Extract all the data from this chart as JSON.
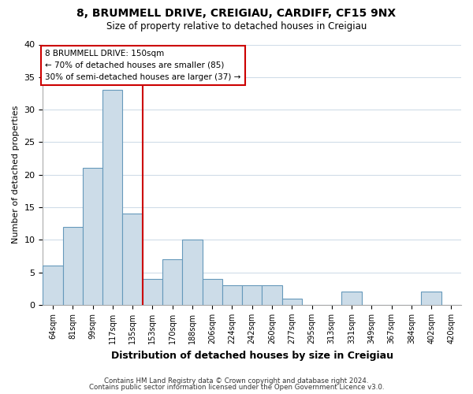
{
  "title": "8, BRUMMELL DRIVE, CREIGIAU, CARDIFF, CF15 9NX",
  "subtitle": "Size of property relative to detached houses in Creigiau",
  "xlabel": "Distribution of detached houses by size in Creigiau",
  "ylabel": "Number of detached properties",
  "bar_color": "#ccdce8",
  "bar_edge_color": "#6699bb",
  "bin_labels": [
    "64sqm",
    "81sqm",
    "99sqm",
    "117sqm",
    "135sqm",
    "153sqm",
    "170sqm",
    "188sqm",
    "206sqm",
    "224sqm",
    "242sqm",
    "260sqm",
    "277sqm",
    "295sqm",
    "313sqm",
    "331sqm",
    "349sqm",
    "367sqm",
    "384sqm",
    "402sqm",
    "420sqm"
  ],
  "bar_heights": [
    6,
    12,
    21,
    33,
    14,
    4,
    7,
    10,
    4,
    3,
    3,
    3,
    1,
    0,
    0,
    2,
    0,
    0,
    0,
    2,
    0
  ],
  "vline_bin": 5,
  "vline_color": "#cc0000",
  "ylim": [
    0,
    40
  ],
  "yticks": [
    0,
    5,
    10,
    15,
    20,
    25,
    30,
    35,
    40
  ],
  "annotation_title": "8 BRUMMELL DRIVE: 150sqm",
  "annotation_line1": "← 70% of detached houses are smaller (85)",
  "annotation_line2": "30% of semi-detached houses are larger (37) →",
  "annotation_box_color": "#ffffff",
  "annotation_box_edge": "#cc0000",
  "footer1": "Contains HM Land Registry data © Crown copyright and database right 2024.",
  "footer2": "Contains public sector information licensed under the Open Government Licence v3.0.",
  "background_color": "#ffffff",
  "plot_bg_color": "#ffffff",
  "grid_color": "#d0dce8"
}
